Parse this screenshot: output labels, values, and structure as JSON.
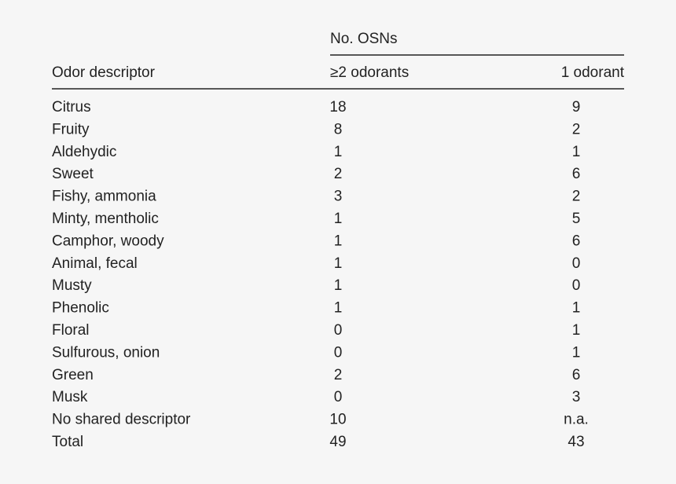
{
  "header": {
    "group": "No. OSNs",
    "columns": [
      "Odor descriptor",
      "≥2 odorants",
      "1 odorant"
    ]
  },
  "table": {
    "rows": [
      [
        "Citrus",
        18,
        9
      ],
      [
        "Fruity",
        8,
        2
      ],
      [
        "Aldehydic",
        1,
        1
      ],
      [
        "Sweet",
        2,
        6
      ],
      [
        "Fishy, ammonia",
        3,
        2
      ],
      [
        "Minty, mentholic",
        1,
        5
      ],
      [
        "Camphor, woody",
        1,
        6
      ],
      [
        "Animal, fecal",
        1,
        0
      ],
      [
        "Musty",
        1,
        0
      ],
      [
        "Phenolic",
        1,
        1
      ],
      [
        "Floral",
        0,
        1
      ],
      [
        "Sulfurous, onion",
        0,
        1
      ],
      [
        "Green",
        2,
        6
      ],
      [
        "Musk",
        0,
        3
      ],
      [
        "No shared descriptor",
        10,
        "n.a."
      ],
      [
        "Total",
        49,
        43
      ]
    ]
  }
}
